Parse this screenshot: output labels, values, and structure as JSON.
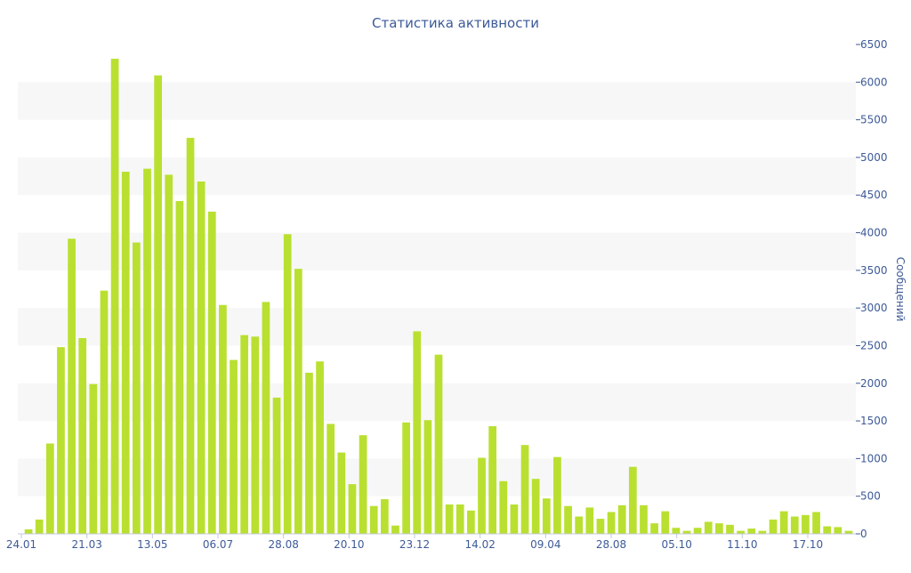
{
  "chart_data": {
    "type": "bar",
    "title": "Статистика активности",
    "ylabel": "Сообщений",
    "xlabel": "",
    "ylim": [
      0,
      6500
    ],
    "y_ticks": [
      0,
      500,
      1000,
      1500,
      2000,
      2500,
      3000,
      3500,
      4000,
      4500,
      5000,
      5500,
      6000,
      6500
    ],
    "x_tick_labels": [
      "24.01",
      "21.03",
      "13.05",
      "06.07",
      "28.08",
      "20.10",
      "23.12",
      "14.02",
      "09.04",
      "28.08",
      "05.10",
      "11.10",
      "17.10"
    ],
    "y_axis_side": "right",
    "grid": "alternating horizontal bands",
    "colors": {
      "bar": "#b9e030",
      "band": "#f7f7f7",
      "text": "#3d5a98"
    },
    "values": [
      60,
      190,
      1200,
      2480,
      3920,
      2600,
      1990,
      3230,
      6310,
      4810,
      3870,
      4850,
      6090,
      4770,
      4420,
      5260,
      4680,
      4280,
      3040,
      2310,
      2640,
      2620,
      3080,
      1810,
      3980,
      3520,
      2140,
      2290,
      1460,
      1080,
      660,
      1310,
      370,
      460,
      110,
      1480,
      2690,
      1510,
      2380,
      390,
      390,
      310,
      1010,
      1430,
      700,
      390,
      1180,
      730,
      470,
      1020,
      370,
      230,
      350,
      200,
      290,
      380,
      890,
      380,
      140,
      300,
      80,
      40,
      80,
      160,
      140,
      120,
      40,
      70,
      40,
      190,
      300,
      230,
      250,
      290,
      100,
      90,
      40
    ]
  }
}
